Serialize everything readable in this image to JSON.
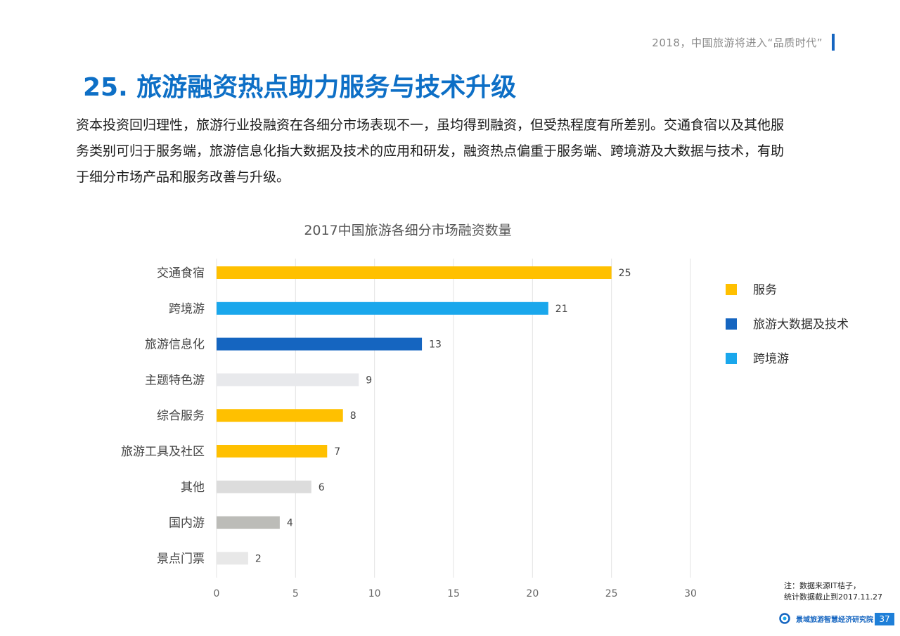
{
  "header": {
    "tagline": "2018，中国旅游将进入“品质时代”",
    "title": "25. 旅游融资热点助力服务与技术升级",
    "intro": "资本投资回归理性，旅游行业投融资在各细分市场表现不一，虽均得到融资，但受热程度有所差别。交通食宿以及其他服务类别可归于服务端，旅游信息化指大数据及技术的应用和研发，融资热点偏重于服务端、跨境游及大数据与技术，有助于细分市场产品和服务改善与升级。"
  },
  "chart_data": {
    "type": "bar",
    "orientation": "horizontal",
    "title": "2017中国旅游各细分市场融资数量",
    "categories": [
      "交通食宿",
      "跨境游",
      "旅游信息化",
      "主题特色游",
      "综合服务",
      "旅游工具及社区",
      "其他",
      "国内游",
      "景点门票"
    ],
    "values": [
      25,
      21,
      13,
      9,
      8,
      7,
      6,
      4,
      2
    ],
    "bar_colors": [
      "#ffc000",
      "#1aa7ec",
      "#1565c0",
      "#e8e9ec",
      "#ffc000",
      "#ffc000",
      "#dcdcdc",
      "#bcbcb8",
      "#e8e8e8"
    ],
    "xlim": [
      0,
      30
    ],
    "xticks": [
      0,
      5,
      10,
      15,
      20,
      25,
      30
    ],
    "grid": "vertical",
    "legend": {
      "placement": "right",
      "entries": [
        {
          "label": "服务",
          "color": "#ffc000"
        },
        {
          "label": "旅游大数据及技术",
          "color": "#1565c0"
        },
        {
          "label": "跨境游",
          "color": "#1aa7ec"
        }
      ]
    }
  },
  "footnote": {
    "line1": "注：数据来源IT桔子，",
    "line2": "统计数据截止到2017.11.27"
  },
  "footer": {
    "logo_text": "景域旅游智慧经济研究院",
    "page_number": "37"
  }
}
